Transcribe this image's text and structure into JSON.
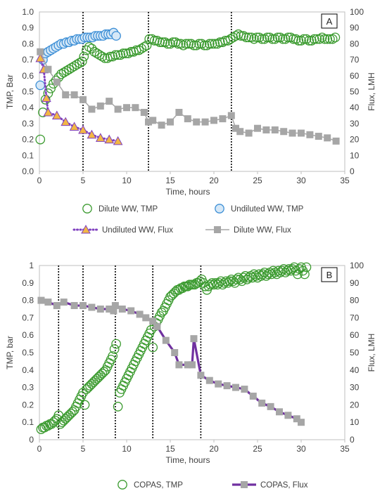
{
  "chart_data": [
    {
      "type": "scatter",
      "panel_label": "A",
      "xlabel": "Time, hours",
      "ylabel": "TMP, Bar",
      "y2label": "Flux, LMH",
      "xlim": [
        0,
        35
      ],
      "xticks": [
        "0",
        "5",
        "10",
        "15",
        "20",
        "25",
        "30",
        "35"
      ],
      "ylim": [
        0,
        1
      ],
      "yticks": [
        "0.0",
        "0.1",
        "0.2",
        "0.3",
        "0.4",
        "0.5",
        "0.6",
        "0.7",
        "0.8",
        "0.9",
        "1.0"
      ],
      "y2lim": [
        0,
        100
      ],
      "y2ticks": [
        "0",
        "10",
        "20",
        "30",
        "40",
        "50",
        "60",
        "70",
        "80",
        "90",
        "100"
      ],
      "vlines": [
        5.0,
        12.5,
        22.0
      ],
      "legend_position": "bottom",
      "series": [
        {
          "name": "Dilute WW, TMP",
          "axis": "left",
          "marker": "circle",
          "color": "#3a9a2e",
          "fill": "none",
          "line": false,
          "x": [
            0.1,
            0.4,
            0.7,
            1.0,
            1.3,
            1.6,
            1.9,
            2.2,
            2.5,
            2.8,
            3.1,
            3.4,
            3.7,
            4.0,
            4.3,
            4.6,
            4.9,
            5.1,
            5.4,
            5.7,
            6.0,
            6.3,
            6.6,
            6.9,
            7.2,
            7.5,
            7.8,
            8.1,
            8.4,
            8.7,
            9.0,
            9.3,
            9.6,
            9.9,
            10.2,
            10.5,
            10.8,
            11.1,
            11.4,
            11.7,
            12.0,
            12.3,
            12.6,
            12.9,
            13.2,
            13.5,
            13.8,
            14.1,
            14.4,
            14.7,
            15.0,
            15.3,
            15.6,
            15.9,
            16.2,
            16.5,
            16.8,
            17.1,
            17.4,
            17.7,
            18.0,
            18.3,
            18.6,
            18.9,
            19.2,
            19.5,
            19.8,
            20.1,
            20.4,
            20.7,
            21.0,
            21.3,
            21.6,
            21.9,
            22.2,
            22.5,
            22.8,
            23.1,
            23.4,
            23.7,
            24.0,
            24.3,
            24.6,
            24.9,
            25.2,
            25.5,
            25.8,
            26.1,
            26.4,
            26.7,
            27.0,
            27.3,
            27.6,
            27.9,
            28.2,
            28.5,
            28.8,
            29.1,
            29.4,
            29.7,
            30.0,
            30.3,
            30.6,
            30.9,
            31.2,
            31.5,
            31.8,
            32.1,
            32.4,
            32.7,
            33.0,
            33.3,
            33.6,
            33.9
          ],
          "y": [
            0.2,
            0.37,
            0.45,
            0.49,
            0.52,
            0.55,
            0.57,
            0.59,
            0.61,
            0.62,
            0.63,
            0.64,
            0.65,
            0.66,
            0.67,
            0.68,
            0.69,
            0.72,
            0.76,
            0.78,
            0.77,
            0.75,
            0.74,
            0.73,
            0.72,
            0.71,
            0.71,
            0.72,
            0.72,
            0.73,
            0.73,
            0.73,
            0.74,
            0.74,
            0.74,
            0.75,
            0.75,
            0.76,
            0.76,
            0.77,
            0.78,
            0.79,
            0.83,
            0.83,
            0.82,
            0.82,
            0.81,
            0.81,
            0.81,
            0.8,
            0.8,
            0.81,
            0.81,
            0.8,
            0.8,
            0.79,
            0.8,
            0.8,
            0.8,
            0.79,
            0.79,
            0.8,
            0.8,
            0.79,
            0.79,
            0.8,
            0.8,
            0.8,
            0.8,
            0.81,
            0.81,
            0.82,
            0.82,
            0.83,
            0.84,
            0.85,
            0.86,
            0.85,
            0.85,
            0.84,
            0.84,
            0.84,
            0.83,
            0.84,
            0.84,
            0.83,
            0.83,
            0.84,
            0.84,
            0.83,
            0.83,
            0.84,
            0.84,
            0.83,
            0.83,
            0.84,
            0.84,
            0.83,
            0.83,
            0.82,
            0.82,
            0.83,
            0.83,
            0.82,
            0.82,
            0.83,
            0.83,
            0.83,
            0.84,
            0.83,
            0.83,
            0.83,
            0.83,
            0.84
          ]
        },
        {
          "name": "Undiluted WW, TMP",
          "axis": "left",
          "marker": "circle",
          "color": "#3d8fd6",
          "fill": "#d6e8f7",
          "line": false,
          "x": [
            0.1,
            0.4,
            0.7,
            1.0,
            1.3,
            1.6,
            1.9,
            2.2,
            2.5,
            2.8,
            3.1,
            3.4,
            3.7,
            4.0,
            4.3,
            4.6,
            4.9,
            5.2,
            5.5,
            5.8,
            6.1,
            6.4,
            6.7,
            7.0,
            7.3,
            7.6,
            7.9,
            8.2,
            8.5,
            8.8
          ],
          "y": [
            0.54,
            0.7,
            0.74,
            0.75,
            0.76,
            0.77,
            0.78,
            0.79,
            0.8,
            0.8,
            0.81,
            0.81,
            0.82,
            0.82,
            0.83,
            0.83,
            0.83,
            0.84,
            0.84,
            0.84,
            0.84,
            0.85,
            0.85,
            0.85,
            0.85,
            0.86,
            0.86,
            0.86,
            0.87,
            0.85
          ]
        },
        {
          "name": "Undiluted WW, Flux",
          "axis": "right",
          "marker": "triangle",
          "color": "#7f3fbf",
          "fill": "#f2b744",
          "line": true,
          "dotted": true,
          "x": [
            0.1,
            0.5,
            0.8,
            1.0,
            2.0,
            3.0,
            4.0,
            5.0,
            6.0,
            7.0,
            8.0,
            9.0
          ],
          "y": [
            71,
            64,
            46,
            37,
            35,
            31,
            28,
            26,
            23,
            21,
            20,
            19
          ]
        },
        {
          "name": "Dilute WW, Flux",
          "axis": "right",
          "marker": "square",
          "color": "#a6a6a6",
          "fill": "#a6a6a6",
          "line": true,
          "x": [
            0.1,
            1.0,
            2.0,
            3.0,
            4.0,
            5.0,
            6.0,
            7.0,
            8.0,
            9.0,
            10.0,
            11.0,
            12.0,
            12.5,
            13.0,
            14.0,
            15.0,
            16.0,
            17.0,
            18.0,
            19.0,
            20.0,
            21.0,
            22.0,
            22.5,
            23.0,
            24.0,
            25.0,
            26.0,
            27.0,
            28.0,
            29.0,
            30.0,
            31.0,
            32.0,
            33.0,
            34.0
          ],
          "y": [
            75,
            64,
            56,
            48,
            48,
            45,
            39,
            41,
            44,
            39,
            40,
            40,
            37,
            31,
            32,
            29,
            31,
            37,
            33,
            31,
            31,
            32,
            33,
            35,
            27,
            25,
            24,
            27,
            26,
            26,
            25,
            24,
            24,
            23,
            22,
            21,
            19
          ]
        }
      ]
    },
    {
      "type": "scatter",
      "panel_label": "B",
      "xlabel": "Time, hours",
      "ylabel": "TMP, bar",
      "y2label": "Flux, LMH",
      "xlim": [
        0,
        35
      ],
      "xticks": [
        "0",
        "5",
        "10",
        "15",
        "20",
        "25",
        "30",
        "35"
      ],
      "ylim": [
        0,
        1
      ],
      "yticks": [
        "0",
        "0.1",
        "0.2",
        "0.3",
        "0.4",
        "0.5",
        "0.6",
        "0.7",
        "0.8",
        "0.9",
        "1"
      ],
      "y2lim": [
        0,
        100
      ],
      "y2ticks": [
        "0",
        "10",
        "20",
        "30",
        "40",
        "50",
        "60",
        "70",
        "80",
        "90",
        "100"
      ],
      "vlines": [
        2.2,
        5.0,
        8.7,
        13.0,
        18.5
      ],
      "legend_position": "bottom",
      "series": [
        {
          "name": "COPAS, TMP",
          "axis": "left",
          "marker": "circle",
          "color": "#3a9a2e",
          "fill": "none",
          "line": false,
          "x": [
            0.2,
            0.4,
            0.6,
            0.8,
            1.0,
            1.2,
            1.4,
            1.6,
            1.8,
            2.0,
            2.2,
            2.4,
            2.6,
            2.8,
            3.0,
            3.2,
            3.4,
            3.6,
            3.8,
            4.0,
            4.2,
            4.4,
            4.6,
            4.8,
            5.0,
            5.2,
            5.4,
            5.6,
            5.8,
            6.0,
            6.2,
            6.4,
            6.6,
            6.8,
            7.0,
            7.2,
            7.4,
            7.6,
            7.8,
            8.0,
            8.2,
            8.4,
            8.6,
            8.8,
            9.0,
            9.2,
            9.4,
            9.6,
            9.8,
            10.0,
            10.2,
            10.4,
            10.6,
            10.8,
            11.0,
            11.2,
            11.4,
            11.6,
            11.8,
            12.0,
            12.2,
            12.4,
            12.6,
            12.8,
            13.0,
            13.2,
            13.4,
            13.6,
            13.8,
            14.0,
            14.2,
            14.4,
            14.6,
            14.8,
            15.0,
            15.2,
            15.4,
            15.6,
            15.8,
            16.0,
            16.2,
            16.4,
            16.6,
            16.8,
            17.0,
            17.2,
            17.4,
            17.6,
            17.8,
            18.0,
            18.2,
            18.4,
            18.6,
            18.8,
            19.0,
            19.2,
            19.4,
            19.6,
            19.8,
            20.0,
            20.2,
            20.4,
            20.6,
            20.8,
            21.0,
            21.2,
            21.4,
            21.6,
            21.8,
            22.0,
            22.2,
            22.4,
            22.6,
            22.8,
            23.0,
            23.2,
            23.4,
            23.6,
            23.8,
            24.0,
            24.2,
            24.4,
            24.6,
            24.8,
            25.0,
            25.2,
            25.4,
            25.6,
            25.8,
            26.0,
            26.2,
            26.4,
            26.6,
            26.8,
            27.0,
            27.2,
            27.4,
            27.6,
            27.8,
            28.0,
            28.2,
            28.4,
            28.6,
            28.8,
            29.0,
            29.2,
            29.4,
            29.6,
            29.8,
            30.0,
            30.2,
            30.4,
            30.6
          ],
          "y": [
            0.06,
            0.07,
            0.07,
            0.08,
            0.08,
            0.09,
            0.09,
            0.1,
            0.11,
            0.12,
            0.14,
            0.09,
            0.1,
            0.11,
            0.12,
            0.13,
            0.14,
            0.15,
            0.16,
            0.17,
            0.19,
            0.21,
            0.23,
            0.25,
            0.27,
            0.2,
            0.29,
            0.3,
            0.31,
            0.32,
            0.33,
            0.34,
            0.35,
            0.36,
            0.37,
            0.38,
            0.39,
            0.4,
            0.42,
            0.44,
            0.46,
            0.48,
            0.52,
            0.55,
            0.19,
            0.27,
            0.29,
            0.31,
            0.33,
            0.35,
            0.37,
            0.39,
            0.41,
            0.43,
            0.45,
            0.47,
            0.49,
            0.51,
            0.53,
            0.55,
            0.57,
            0.59,
            0.61,
            0.63,
            0.53,
            0.65,
            0.67,
            0.69,
            0.71,
            0.73,
            0.74,
            0.76,
            0.78,
            0.8,
            0.82,
            0.83,
            0.84,
            0.85,
            0.86,
            0.86,
            0.87,
            0.87,
            0.88,
            0.88,
            0.88,
            0.89,
            0.89,
            0.89,
            0.89,
            0.9,
            0.9,
            0.91,
            0.92,
            0.9,
            0.88,
            0.86,
            0.88,
            0.89,
            0.9,
            0.89,
            0.9,
            0.89,
            0.9,
            0.91,
            0.89,
            0.9,
            0.91,
            0.9,
            0.91,
            0.92,
            0.91,
            0.9,
            0.92,
            0.93,
            0.92,
            0.91,
            0.93,
            0.94,
            0.92,
            0.93,
            0.94,
            0.93,
            0.95,
            0.94,
            0.93,
            0.95,
            0.94,
            0.95,
            0.96,
            0.94,
            0.95,
            0.96,
            0.95,
            0.97,
            0.96,
            0.95,
            0.97,
            0.96,
            0.97,
            0.98,
            0.96,
            0.97,
            0.98,
            0.97,
            0.98,
            0.99,
            0.97,
            0.95,
            0.98,
            0.99,
            0.97,
            0.95,
            0.99
          ]
        },
        {
          "name": "COPAS, Flux",
          "axis": "right",
          "marker": "square",
          "color": "#7030a0",
          "fill": "#a6a6a6",
          "line": true,
          "x": [
            0.2,
            1.0,
            2.0,
            2.8,
            4.0,
            5.0,
            6.0,
            7.0,
            8.0,
            8.5,
            8.7,
            9.5,
            10.5,
            11.5,
            12.2,
            13.0,
            13.5,
            14.5,
            15.5,
            16.0,
            17.0,
            17.5,
            17.7,
            18.5,
            19.5,
            20.5,
            21.5,
            22.5,
            23.5,
            24.5,
            25.5,
            26.5,
            27.5,
            28.5,
            29.5,
            30.0
          ],
          "y": [
            80,
            79,
            77,
            79,
            77,
            77,
            76,
            75,
            75,
            74,
            77,
            75,
            74,
            72,
            70,
            68,
            65,
            57,
            50,
            43,
            43,
            43,
            58,
            37,
            34,
            32,
            31,
            30,
            29,
            25,
            21,
            19,
            16,
            14,
            12,
            10
          ]
        }
      ]
    }
  ]
}
